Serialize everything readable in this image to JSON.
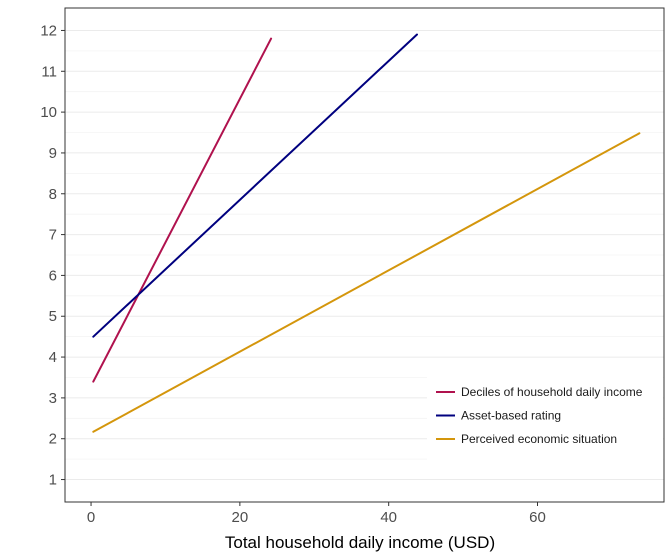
{
  "chart_data": {
    "type": "line",
    "title": "",
    "xlabel": "Total household daily income (USD)",
    "ylabel": "",
    "xlim": [
      -3.5,
      77
    ],
    "ylim": [
      0.45,
      12.55
    ],
    "x_ticks": [
      0,
      20,
      40,
      60
    ],
    "y_ticks": [
      1,
      2,
      3,
      4,
      5,
      6,
      7,
      8,
      9,
      10,
      11,
      12
    ],
    "grid": "horizontal major and minor lines",
    "legend_position": "bottom-right",
    "series": [
      {
        "name": "Deciles of household daily income",
        "color": "#b0124e",
        "points": [
          [
            0.3,
            3.4
          ],
          [
            24.2,
            11.8
          ]
        ]
      },
      {
        "name": "Asset-based rating",
        "color": "#00007f",
        "points": [
          [
            0.3,
            4.5
          ],
          [
            43.8,
            11.9
          ]
        ]
      },
      {
        "name": "Perceived economic situation",
        "color": "#d4960c",
        "points": [
          [
            0.3,
            2.17
          ],
          [
            73.7,
            9.48
          ]
        ]
      }
    ]
  }
}
